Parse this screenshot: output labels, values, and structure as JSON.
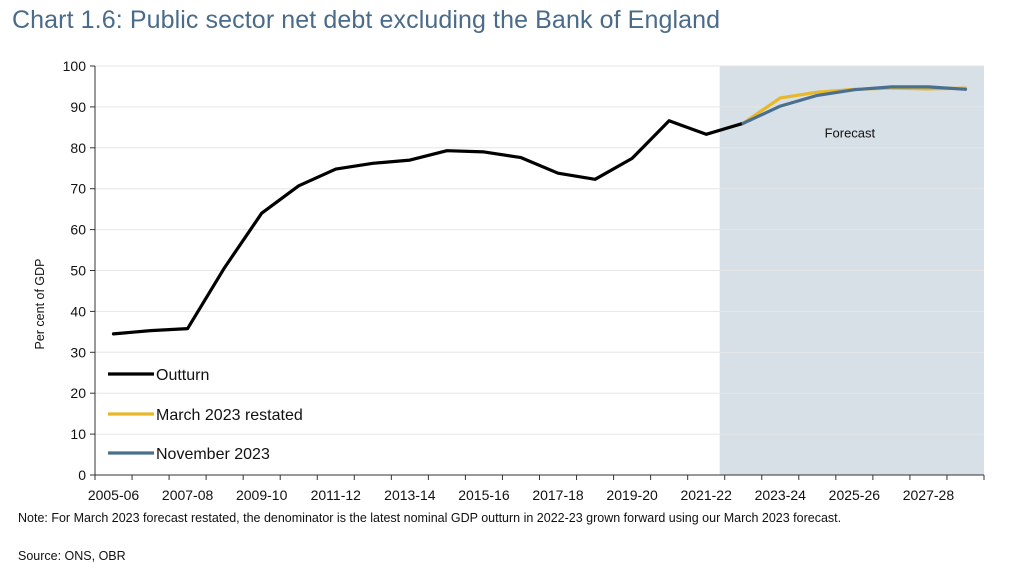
{
  "title": "Chart 1.6: Public sector net debt excluding the Bank of England",
  "note": "Note: For March 2023 forecast restated, the denominator is the latest nominal GDP outturn in 2022-23 grown forward using our March 2023 forecast.",
  "source": "Source: ONS, OBR",
  "chart_data": {
    "type": "line",
    "title": "Chart 1.6: Public sector net debt excluding the Bank of England",
    "ylabel": "Per cent of GDP",
    "xlabel": "",
    "ylim": [
      0,
      100
    ],
    "yticks": [
      0,
      10,
      20,
      30,
      40,
      50,
      60,
      70,
      80,
      90,
      100
    ],
    "grid": true,
    "legend_position": "bottom-left",
    "categories": [
      "2005-06",
      "2006-07",
      "2007-08",
      "2008-09",
      "2009-10",
      "2010-11",
      "2011-12",
      "2012-13",
      "2013-14",
      "2014-15",
      "2015-16",
      "2016-17",
      "2017-18",
      "2018-19",
      "2019-20",
      "2020-21",
      "2021-22",
      "2022-23",
      "2023-24",
      "2024-25",
      "2025-26",
      "2026-27",
      "2027-28",
      "2028-29"
    ],
    "tick_labels": [
      "2005-06",
      "2007-08",
      "2009-10",
      "2011-12",
      "2013-14",
      "2015-16",
      "2017-18",
      "2019-20",
      "2021-22",
      "2023-24",
      "2025-26",
      "2027-28"
    ],
    "forecast_region": {
      "label": "Forecast",
      "from": "2021-22",
      "to": "2028-29",
      "color": "#d7dfe7"
    },
    "series": [
      {
        "name": "Outturn",
        "color": "#000000",
        "x": [
          "2005-06",
          "2006-07",
          "2007-08",
          "2008-09",
          "2009-10",
          "2010-11",
          "2011-12",
          "2012-13",
          "2013-14",
          "2014-15",
          "2015-16",
          "2016-17",
          "2017-18",
          "2018-19",
          "2019-20",
          "2020-21",
          "2021-22",
          "2022-23"
        ],
        "values": [
          34.5,
          35.3,
          35.8,
          50.7,
          64.0,
          70.7,
          74.8,
          76.2,
          77.0,
          79.3,
          79.0,
          77.6,
          73.8,
          72.3,
          77.4,
          86.6,
          83.3,
          86.0
        ]
      },
      {
        "name": "March 2023 restated",
        "color": "#e8b828",
        "x": [
          "2022-23",
          "2023-24",
          "2024-25",
          "2025-26",
          "2026-27",
          "2027-28",
          "2028-29"
        ],
        "values": [
          86.0,
          92.2,
          93.6,
          94.3,
          94.6,
          94.4,
          94.6
        ]
      },
      {
        "name": "November 2023",
        "color": "#4a6f8f",
        "x": [
          "2022-23",
          "2023-24",
          "2024-25",
          "2025-26",
          "2026-27",
          "2027-28",
          "2028-29"
        ],
        "values": [
          86.0,
          90.2,
          92.8,
          94.2,
          94.9,
          94.9,
          94.3
        ]
      }
    ]
  }
}
